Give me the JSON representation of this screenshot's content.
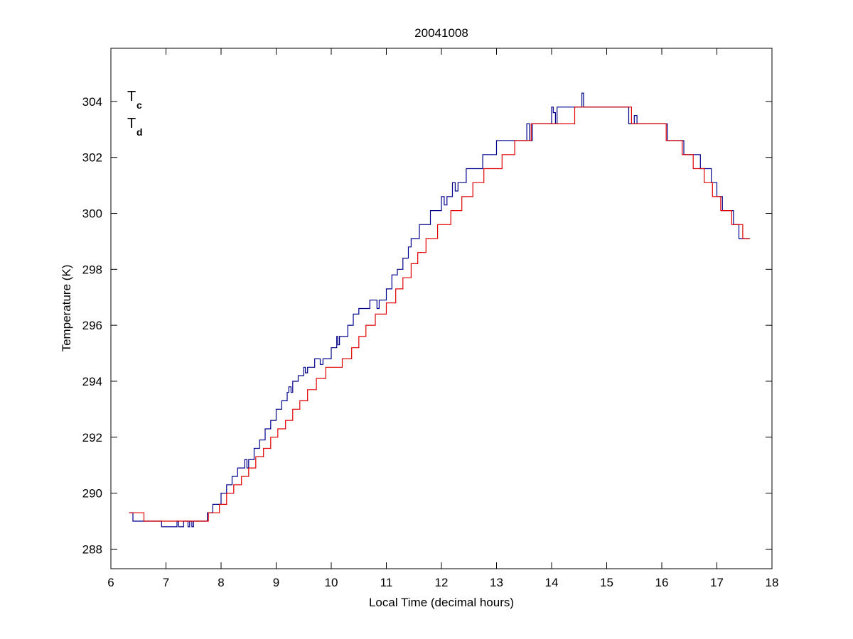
{
  "chart_data": {
    "type": "line",
    "title": "20041008",
    "xlabel": "Local Time (decimal hours)",
    "ylabel": "Temperature (K)",
    "xlim": [
      6,
      18
    ],
    "ylim": [
      287.3,
      305.9
    ],
    "xticks": [
      6,
      7,
      8,
      9,
      10,
      11,
      12,
      13,
      14,
      15,
      16,
      17,
      18
    ],
    "yticks": [
      288,
      290,
      292,
      294,
      296,
      298,
      300,
      302,
      304
    ],
    "grid": false,
    "legend": {
      "placement": "top-left",
      "entries": [
        {
          "main": "T",
          "sub": "c",
          "color": "#0000cc"
        },
        {
          "main": "T",
          "sub": "d",
          "color": "#dd0000"
        }
      ]
    },
    "series": [
      {
        "legend_main": "T",
        "legend_sub": "c",
        "color": "#00008b",
        "x": [
          6.33,
          6.4,
          6.45,
          6.5,
          6.6,
          6.9,
          6.92,
          7.1,
          7.2,
          7.23,
          7.3,
          7.32,
          7.4,
          7.43,
          7.47,
          7.5,
          7.55,
          7.75,
          7.8,
          7.85,
          7.93,
          8.0,
          8.1,
          8.2,
          8.3,
          8.4,
          8.43,
          8.47,
          8.5,
          8.6,
          8.7,
          8.75,
          8.8,
          8.9,
          9.0,
          9.1,
          9.2,
          9.23,
          9.27,
          9.3,
          9.4,
          9.5,
          9.53,
          9.57,
          9.6,
          9.7,
          9.8,
          9.85,
          9.9,
          10.0,
          10.1,
          10.12,
          10.15,
          10.2,
          10.3,
          10.4,
          10.5,
          10.6,
          10.7,
          10.8,
          10.83,
          10.87,
          10.9,
          11.0,
          11.1,
          11.2,
          11.3,
          11.4,
          11.45,
          11.5,
          11.6,
          11.7,
          11.8,
          11.9,
          12.0,
          12.05,
          12.1,
          12.2,
          12.25,
          12.3,
          12.45,
          12.7,
          12.75,
          12.8,
          13.0,
          13.45,
          13.55,
          13.6,
          13.65,
          13.7,
          14.0,
          14.03,
          14.07,
          14.1,
          14.4,
          14.55,
          14.58,
          14.62,
          15.4,
          15.45,
          15.5,
          15.55,
          15.6,
          16.1,
          16.15,
          16.4,
          16.45,
          16.7,
          16.9,
          17.0,
          17.1,
          17.2,
          17.3,
          17.4,
          17.45,
          17.5,
          17.6
        ],
        "y": [
          289.3,
          289.0,
          289.0,
          289.0,
          289.0,
          289.0,
          288.8,
          288.8,
          289.0,
          288.8,
          288.8,
          289.0,
          288.8,
          289.0,
          288.8,
          289.0,
          289.0,
          289.3,
          289.3,
          289.6,
          289.6,
          290.0,
          290.3,
          290.6,
          290.9,
          290.9,
          291.2,
          290.9,
          291.2,
          291.6,
          291.9,
          291.9,
          292.3,
          292.6,
          293.0,
          293.3,
          293.6,
          293.8,
          293.6,
          294.0,
          294.2,
          294.5,
          294.3,
          294.5,
          294.5,
          294.8,
          294.6,
          294.8,
          294.8,
          295.2,
          295.6,
          295.3,
          295.6,
          295.6,
          296.0,
          296.4,
          296.6,
          296.6,
          296.9,
          296.9,
          296.6,
          296.9,
          296.9,
          297.3,
          297.8,
          298.0,
          298.4,
          298.8,
          299.1,
          299.1,
          299.6,
          299.6,
          300.1,
          300.1,
          300.6,
          300.3,
          300.6,
          301.1,
          300.8,
          301.1,
          301.6,
          301.6,
          302.1,
          302.1,
          302.6,
          302.6,
          303.2,
          302.6,
          303.2,
          303.2,
          303.8,
          303.6,
          303.2,
          303.8,
          303.8,
          304.3,
          303.8,
          303.8,
          303.2,
          303.2,
          303.5,
          303.2,
          303.2,
          302.6,
          302.6,
          302.1,
          302.1,
          301.6,
          301.1,
          300.6,
          300.1,
          300.1,
          299.6,
          299.1,
          299.1,
          299.1,
          299.1
        ]
      },
      {
        "legend_main": "T",
        "legend_sub": "d",
        "color": "#e00000",
        "x": [
          6.33,
          6.6,
          7.77,
          7.97,
          8.1,
          8.23,
          8.37,
          8.5,
          8.63,
          8.77,
          8.9,
          9.03,
          9.17,
          9.3,
          9.43,
          9.57,
          9.73,
          9.9,
          10.2,
          10.37,
          10.5,
          10.63,
          10.8,
          11.0,
          11.17,
          11.3,
          11.45,
          11.57,
          11.72,
          11.93,
          12.17,
          12.37,
          12.57,
          12.77,
          13.1,
          13.33,
          13.63,
          13.88,
          14.17,
          14.42,
          14.52,
          15.45,
          16.08,
          16.37,
          16.57,
          16.77,
          16.92,
          17.07,
          17.27,
          17.47,
          17.6
        ],
        "y": [
          289.3,
          289.0,
          289.3,
          289.6,
          290.0,
          290.3,
          290.6,
          290.9,
          291.3,
          291.6,
          292.0,
          292.3,
          292.6,
          293.0,
          293.3,
          293.7,
          294.1,
          294.5,
          294.8,
          295.2,
          295.6,
          296.0,
          296.4,
          296.8,
          297.3,
          297.7,
          298.2,
          298.6,
          299.1,
          299.6,
          300.1,
          300.6,
          301.1,
          301.6,
          302.1,
          302.6,
          303.2,
          303.2,
          303.2,
          303.8,
          303.8,
          303.2,
          302.6,
          302.1,
          301.6,
          301.1,
          300.6,
          300.1,
          299.6,
          299.1,
          299.1
        ]
      }
    ]
  }
}
